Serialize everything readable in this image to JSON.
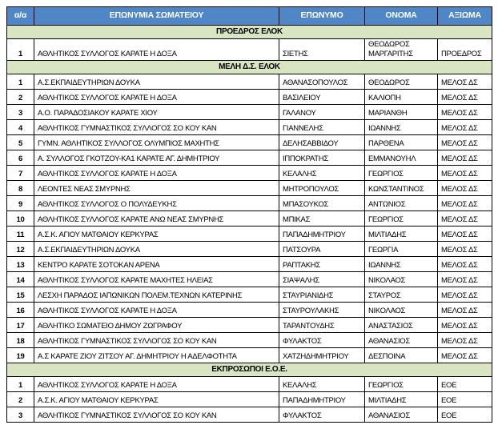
{
  "table": {
    "colors": {
      "header_bg": "#4E86C6",
      "header_text": "#FFFFFF",
      "section_bg": "#D9E5C2",
      "border": "#000000"
    },
    "headers": {
      "num": "α/α",
      "club": "ΕΠΩΝΥΜΙΑ ΣΩΜΑΤΕΙΟΥ",
      "surname": "ΕΠΩΝΥΜΟ",
      "firstname": "ΟΝΟΜΑ",
      "role": "ΑΞΙΩΜΑ"
    },
    "sections": [
      {
        "title": "ΠΡΟΕΔΡΟΣ ΕΛΟΚ",
        "rows": [
          {
            "num": "1",
            "club": "ΑΘΛΗΤΙΚΟΣ ΣΥΛΛΟΓΟΣ ΚΑΡΑΤΕ Η ΔΟΞΑ",
            "surname": "ΣΙΕΤΗΣ",
            "firstname": "ΘΕΟΔΩΡΟΣ ΜΑΡΓΑΡΙΤΗΣ",
            "role": "ΠΡΟΕΔΡΟΣ"
          }
        ]
      },
      {
        "title": "ΜΕΛΗ Δ.Σ. ΕΛΟΚ",
        "rows": [
          {
            "num": "1",
            "club": "Α.Σ.ΕΚΠΑΙΔΕΥΤΗΡΙΩΝ ΔΟΥΚΑ",
            "surname": "ΑΘΑΝΑΣΟΠΟΥΛΟΣ",
            "firstname": "ΘΕΟΔΩΡΟΣ",
            "role": "ΜΕΛΟΣ ΔΣ"
          },
          {
            "num": "2",
            "club": "ΑΘΛΗΤΙΚΟΣ ΣΥΛΛΟΓΟΣ ΚΑΡΑΤΕ Η ΔΟΞΑ",
            "surname": "ΒΑΣΙΛΕΙΟΥ",
            "firstname": "ΚΑΛΙΟΠΗ",
            "role": "ΜΕΛΟΣ ΔΣ"
          },
          {
            "num": "3",
            "club": "Α.Ο. ΠΑΡΑΔΟΣΙΑΚΟΥ ΚΑΡΑΤΕ ΧΙΟΥ",
            "surname": "ΓΑΛΑΝΟΥ",
            "firstname": "ΜΑΡΙΑΝΘΗ",
            "role": "ΜΕΛΟΣ ΔΣ"
          },
          {
            "num": "4",
            "club": "ΑΘΛΗΤΙΚΟΣ ΓΥΜΝΑΣΤΙΚΟΣ ΣΥΛΛΟΓΟΣ ΣΟ ΚΟΥ ΚΑΝ",
            "surname": "ΓΙΑΝΝΕΛΗΣ",
            "firstname": "ΙΩΑΝΝΗΣ",
            "role": "ΜΕΛΟΣ ΔΣ"
          },
          {
            "num": "5",
            "club": "ΓΥΜΝ. ΑΘΛΗΤΙΚΟΣ ΣΥΛΛΟΓΟΣ ΟΛΥΜΠΙΟΣ ΜΑΧΗΤΗΣ",
            "surname": "ΔΕΛΗΣΑΒΒΙΔΟΥ",
            "firstname": "ΠΑΡΘΕΝΑ",
            "role": "ΜΕΛΟΣ ΔΣ"
          },
          {
            "num": "6",
            "club": "Α. ΣΥΛΛΟΓΟΣ ΓΚΟΤΖΟΥ-ΚΑ1 ΚΑΡΑΤΕ ΑΓ. ΔΗΜΗΤΡΙΟΥ",
            "surname": "ΙΠΠΟΚΡΑΤΗΣ",
            "firstname": "ΕΜΜΑΝΟΥΗΛ",
            "role": "ΜΕΛΟΣ ΔΣ"
          },
          {
            "num": "7",
            "club": "ΑΘΛΗΤΙΚΟΣ ΣΥΛΛΟΓΟΣ ΚΑΡΑΤΕ Η ΔΟΞΑ",
            "surname": "ΚΕΛΑΛΗΣ",
            "firstname": "ΓΕΩΡΓΙΟΣ",
            "role": "ΜΕΛΟΣ ΔΣ"
          },
          {
            "num": "8",
            "club": "ΛΕΟΝΤΕΣ ΝΕΑΣ ΣΜΥΡΝΗΣ",
            "surname": "ΜΗΤΡΟΠΟΥΛΟΣ",
            "firstname": "ΚΩΝΣΤΑΝΤΙΝΟΣ",
            "role": "ΜΕΛΟΣ ΔΣ"
          },
          {
            "num": "9",
            "club": "ΑΘΛΗΤΙΚΟΣ ΣΥΛΛΟΓΟΣ Ο ΠΟΛΥΔΕΥΚΗΣ",
            "surname": "ΜΠΑΣΟΥΚΟΣ",
            "firstname": "ΑΝΤΩΝΙΟΣ",
            "role": "ΜΕΛΟΣ ΔΣ"
          },
          {
            "num": "10",
            "club": "ΑΘΛΗΤΙΚΟΣ ΣΥΛΛΟΓΟΣ ΚΑΡΑΤΕ ΑΝΩ ΝΕΑΣ ΣΜΥΡΝΗΣ",
            "surname": "ΜΠΙΚΑΣ",
            "firstname": "ΓΕΩΡΓΙΟΣ",
            "role": "ΜΕΛΟΣ ΔΣ"
          },
          {
            "num": "11",
            "club": "Α.Σ.Κ. ΑΓΙΟΥ ΜΑΤΘΑΙΟΥ ΚΕΡΚΥΡΑΣ",
            "surname": "ΠΑΠΑΔΗΜΗΤΡΙΟΥ",
            "firstname": "ΜΙΛΤΙΑΔΗΣ",
            "role": "ΜΕΛΟΣ ΔΣ"
          },
          {
            "num": "12",
            "club": "Α.Σ.ΕΚΠΑΙΔΕΥΤΗΡΙΩΝ ΔΟΥΚΑ",
            "surname": "ΠΑΤΣΟΥΡΑ",
            "firstname": "ΓΕΩΡΓΙΑ",
            "role": "ΜΕΛΟΣ ΔΣ"
          },
          {
            "num": "13",
            "club": "ΚΕΝΤΡΟ ΚΑΡΑΤΕ ΣΟΤΟΚΑΝ ΑΡΕΝΑ",
            "surname": "ΡΑΠΤΑΚΗΣ",
            "firstname": "ΙΩΑΝΝΗΣ",
            "role": "ΜΕΛΟΣ ΔΣ"
          },
          {
            "num": "14",
            "club": "ΑΘΛΗΤΙΚΟΣ ΣΥΛΛΟΓΟΣ ΚΑΡΑΤΕ ΜΑΧΗΤΕΣ ΗΛΕΙΑΣ",
            "surname": "ΣΙΑΨΑΛΗΣ",
            "firstname": "ΝΙΚΟΛΑΟΣ",
            "role": "ΜΕΛΟΣ ΔΣ"
          },
          {
            "num": "15",
            "club": "ΛΕΣΧΗ ΠΑΡΑΔΟΣ ΙΑΠΩΝΙΚΩΝ ΠΟΛΕΜ.ΤΕΧΝΩΝ ΚΑΤΕΡΙΝΗΣ",
            "surname": "ΣΤΑΥΡΙΑΝΙΔΗΣ",
            "firstname": "ΣΤΑΥΡΟΣ",
            "role": "ΜΕΛΟΣ ΔΣ"
          },
          {
            "num": "16",
            "club": "ΑΘΛΗΤΙΚΟΣ ΣΥΛΛΟΓΟΣ ΚΑΡΑΤΕ Η ΔΟΞΑ",
            "surname": "ΣΤΑΥΡΟΥΛΑΚΗΣ",
            "firstname": "ΝΙΚΟΛΑΟΣ",
            "role": "ΜΕΛΟΣ ΔΣ"
          },
          {
            "num": "17",
            "club": "ΑΘΛΗΤΙΚΟ ΣΩΜΑΤΕΙΟ ΔΗΜΟΥ ΖΩΓΡΑΦΟΥ",
            "surname": "ΤΑΡΑΝΤΟΥΔΗΣ",
            "firstname": "ΑΝΑΣΤΑΣΙΟΣ",
            "role": "ΜΕΛΟΣ ΔΣ"
          },
          {
            "num": "18",
            "club": "ΑΘΛΗΤΙΚΟΣ ΓΥΜΝΑΣΤΙΚΟΣ ΣΥΛΛΟΓΟΣ ΣΟ ΚΟΥ ΚΑΝ",
            "surname": "ΦΥΛΑΚΤΟΣ",
            "firstname": "ΑΘΑΝΑΣΙΟΣ",
            "role": "ΜΕΛΟΣ ΔΣ"
          },
          {
            "num": "19",
            "club": "Α.Σ ΚΑΡΑΤΕ ΖΙΟΥ ΖΙΤΣΟΥ ΑΓ. ΔΗΜΗΤΡΙΟΥ Η ΑΔΕΛΦΟΤΗΤΑ",
            "surname": "ΧΑΤΖΗΔΗΜΗΤΡΙΟΥ",
            "firstname": "ΔΕΣΠΟΙΝΑ",
            "role": "ΜΕΛΟΣ ΔΣ"
          }
        ]
      },
      {
        "title": "ΕΚΠΡΟΣΩΠΟΙ Ε.Ο.Ε.",
        "rows": [
          {
            "num": "1",
            "club": "ΑΘΛΗΤΙΚΟΣ ΣΥΛΛΟΓΟΣ ΚΑΡΑΤΕ Η ΔΟΞΑ",
            "surname": "ΚΕΛΑΛΗΣ",
            "firstname": "ΓΕΩΡΓΙΟΣ",
            "role": "ΕΟΕ"
          },
          {
            "num": "2",
            "club": "Α.Σ.Κ. ΑΓΙΟΥ ΜΑΤΘΑΙΟΥ ΚΕΡΚΥΡΑΣ",
            "surname": "ΠΑΠΑΔΗΜΗΤΡΙΟΥ",
            "firstname": "ΜΙΛΤΙΑΔΗΣ",
            "role": "ΕΟΕ"
          },
          {
            "num": "3",
            "club": "ΑΘΛΗΤΙΚΟΣ ΓΥΜΝΑΣΤΙΚΟΣ ΣΥΛΛΟΓΟΣ ΣΟ ΚΟΥ ΚΑΝ",
            "surname": "ΦΥΛΑΚΤΟΣ",
            "firstname": "ΑΘΑΝΑΣΙΟΣ",
            "role": "ΕΟΕ"
          }
        ]
      }
    ]
  }
}
